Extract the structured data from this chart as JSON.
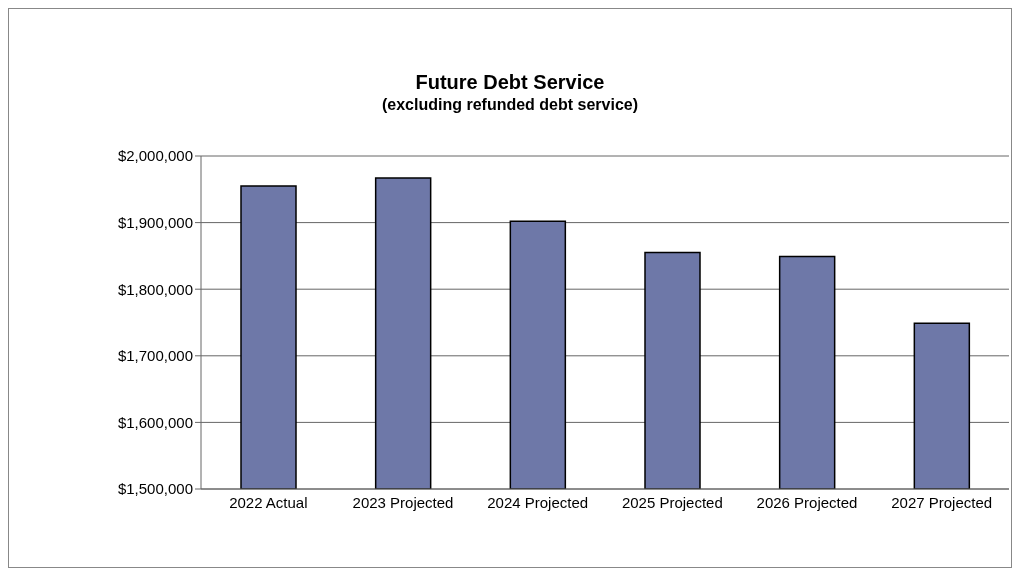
{
  "chart_data": {
    "type": "bar",
    "title": "Future Debt Service",
    "subtitle": "(excluding refunded debt service)",
    "categories": [
      "2022 Actual",
      "2023 Projected",
      "2024 Projected",
      "2025 Projected",
      "2026 Projected",
      "2027 Projected"
    ],
    "values": [
      1955000,
      1967000,
      1902000,
      1855000,
      1849000,
      1749000
    ],
    "color": "#6e78a8",
    "ylim": [
      1500000,
      2000000
    ],
    "yticks": [
      {
        "value": 1500000,
        "label": "$1,500,000"
      },
      {
        "value": 1600000,
        "label": "$1,600,000"
      },
      {
        "value": 1700000,
        "label": "$1,700,000"
      },
      {
        "value": 1800000,
        "label": "$1,800,000"
      },
      {
        "value": 1900000,
        "label": "$1,900,000"
      },
      {
        "value": 2000000,
        "label": "$2,000,000"
      }
    ],
    "grid": "y",
    "legend": false
  }
}
